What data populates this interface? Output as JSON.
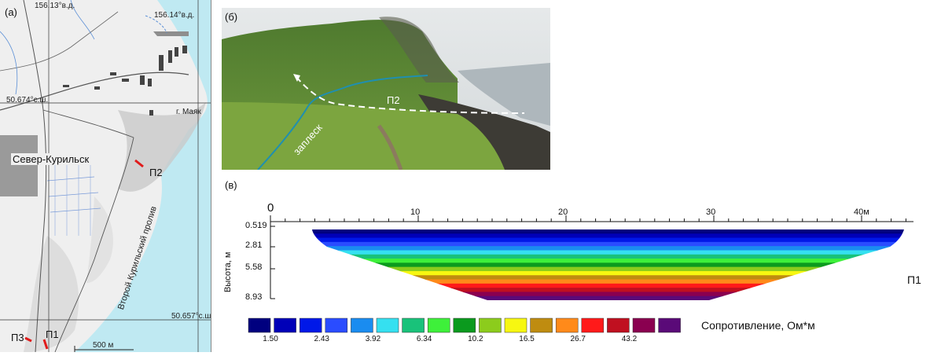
{
  "panels": {
    "map": "(а)",
    "photo": "(б)",
    "section": "(в)"
  },
  "map": {
    "lon_left": "156.13°в.д.",
    "lon_right": "156.14°в.д.",
    "lat_top": "50.674°с.ш.",
    "lat_bottom": "50.657°с.ш.",
    "town": "Север-Курильск",
    "lighthouse": "г. Маяк",
    "strait": "Второй Курильский пролив",
    "profiles": [
      "П1",
      "П2",
      "П3"
    ],
    "scale": "500 м"
  },
  "photo": {
    "label_run": "заплеск",
    "label_profile": "П2"
  },
  "section": {
    "profile": "П1",
    "ylabel": "Высота, м",
    "x_ticks": [
      "0",
      "10",
      "20",
      "30",
      "40м"
    ],
    "y_ticks": [
      "0.519",
      "2.81",
      "5.58",
      "8.93"
    ],
    "legend_title": "Сопротивление, Ом*м",
    "legend_values": [
      "1.50",
      "2.43",
      "3.92",
      "6.34",
      "10.2",
      "16.5",
      "26.7",
      "43.2"
    ],
    "legend_colors": [
      "#00007f",
      "#0000b8",
      "#0018e8",
      "#2a4cff",
      "#1a8cf0",
      "#35e0f0",
      "#19c27a",
      "#3ef03a",
      "#0b9a1e",
      "#8ccc1c",
      "#f7f711",
      "#bf8c10",
      "#ff8a1a",
      "#ff1a1a",
      "#c01020",
      "#8a0050",
      "#5a0a78"
    ]
  },
  "chart_data": {
    "type": "heatmap",
    "title": "",
    "xlabel": "",
    "ylabel": "Высота, м",
    "x_ticks": [
      0,
      10,
      20,
      30,
      40
    ],
    "x_unit": "м",
    "y_ticks": [
      0.519,
      2.81,
      5.58,
      8.93
    ],
    "legend": {
      "title": "Сопротивление, Ом*м",
      "values": [
        1.5,
        2.43,
        3.92,
        6.34,
        10.2,
        16.5,
        26.7,
        43.2
      ]
    }
  }
}
